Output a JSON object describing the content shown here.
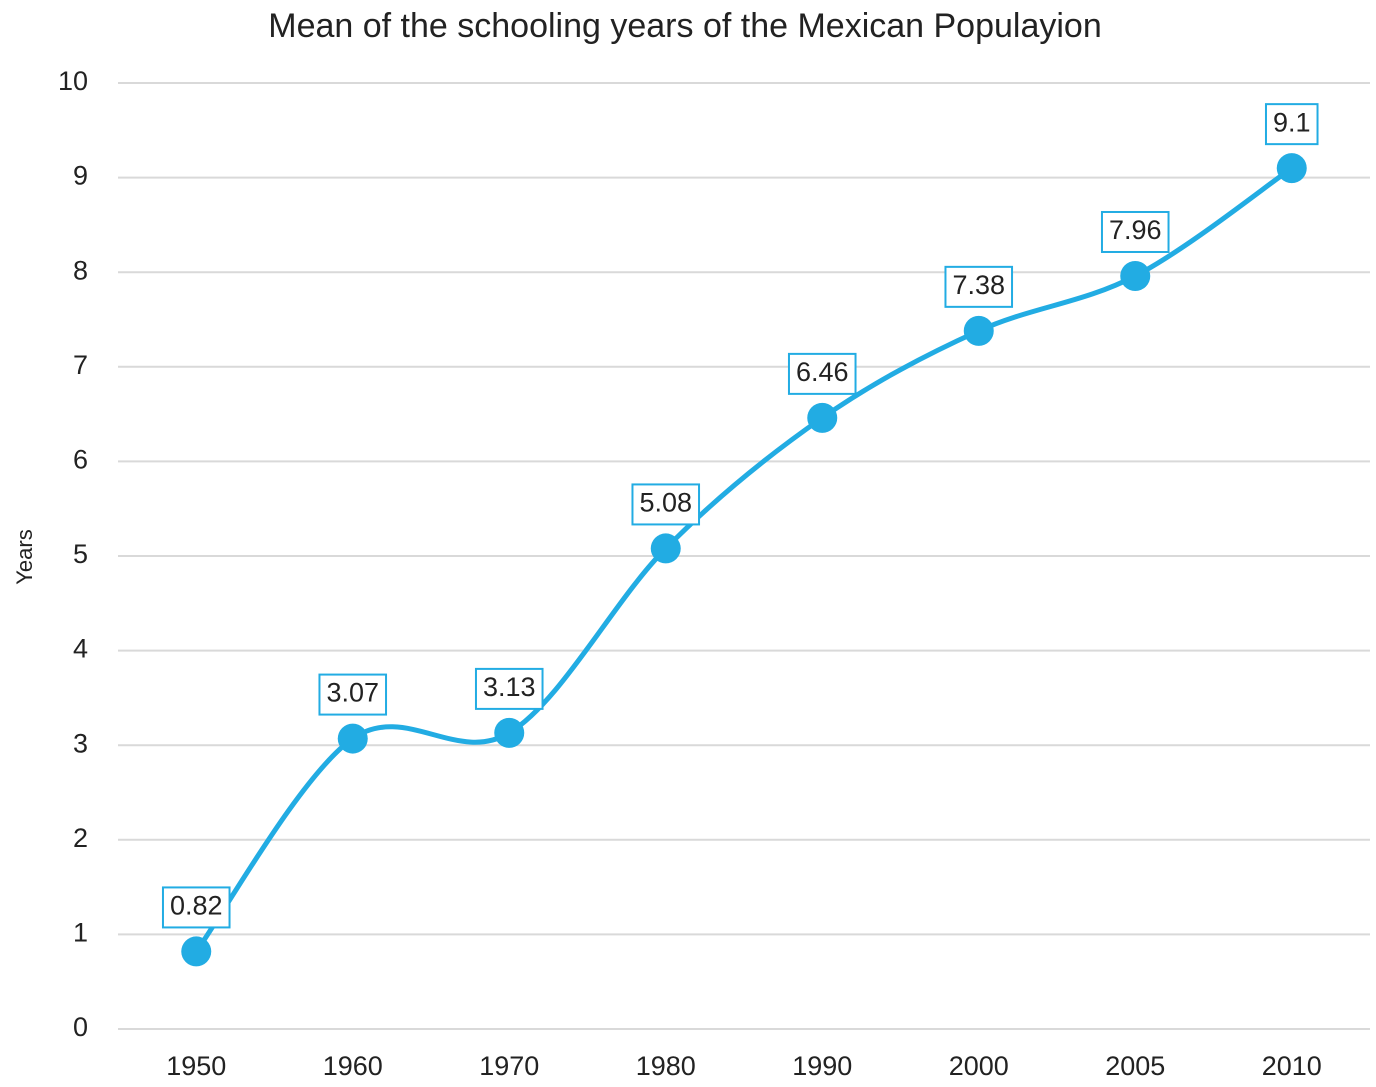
{
  "chart_data": {
    "type": "line",
    "title": "Mean of the schooling years of the Mexican Populayion",
    "y_label": "Years",
    "categories": [
      "1950",
      "1960",
      "1970",
      "1980",
      "1990",
      "2000",
      "2005",
      "2010"
    ],
    "values": [
      0.82,
      3.07,
      3.13,
      5.08,
      6.46,
      7.38,
      7.96,
      9.1
    ],
    "color": "#22ace3",
    "ylim": [
      0,
      10
    ],
    "yticks": [
      0,
      1,
      2,
      3,
      4,
      5,
      6,
      7,
      8,
      9,
      10
    ],
    "grid": true,
    "smooth": true
  }
}
